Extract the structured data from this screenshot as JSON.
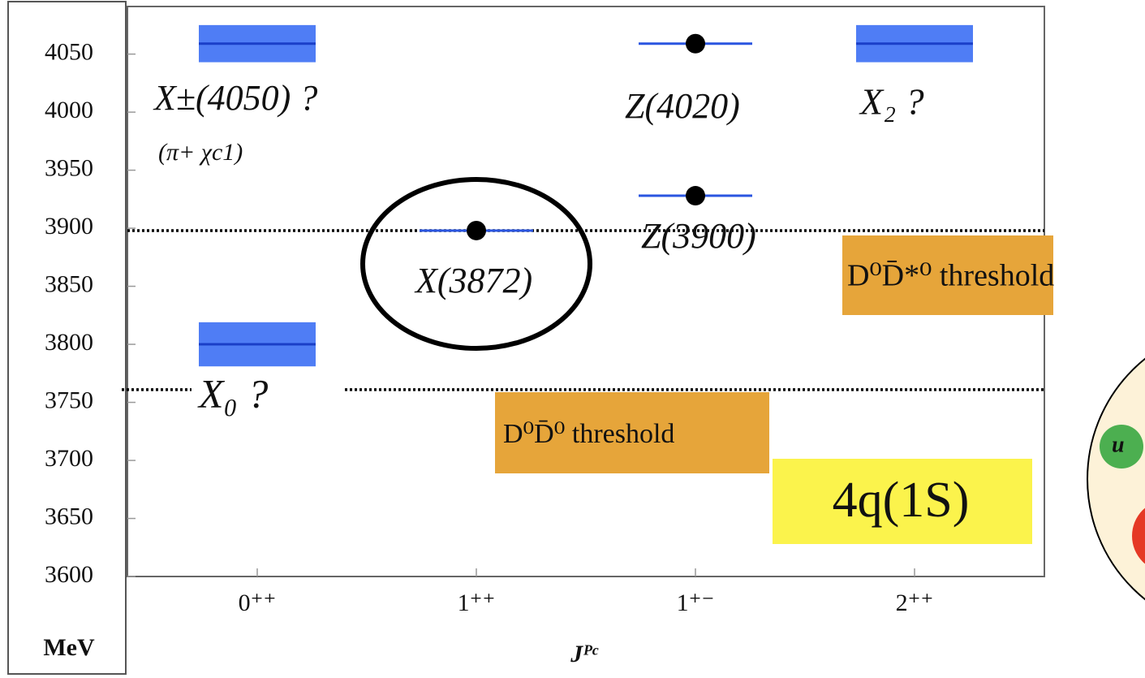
{
  "chart_data": {
    "type": "level",
    "categories": [
      "0⁺⁺",
      "1⁺⁺",
      "1⁺⁻",
      "2⁺⁺"
    ],
    "x_label": "Jᴾᶜ",
    "y_unit": "MeV",
    "ylim": [
      3600,
      4091
    ],
    "yticks": [
      3600,
      3650,
      3700,
      3750,
      3800,
      3850,
      3900,
      3950,
      4000,
      4050
    ],
    "states": [
      {
        "name": "X±(4050) ?",
        "note": "(π+ χc1)",
        "category": 0,
        "mass": 4059,
        "width": 16,
        "color": "#4f7df5"
      },
      {
        "name": "X₀ ?",
        "category": 0,
        "mass": 3800,
        "width": 19,
        "color": "#4f7df5"
      },
      {
        "name": "X(3872)",
        "category": 1,
        "mass": 3898,
        "color": "#000000"
      },
      {
        "name": "Z(4020)",
        "category": 2,
        "mass": 4059,
        "color": "#000000"
      },
      {
        "name": "Z(3900)",
        "category": 2,
        "mass": 3928,
        "color": "#000000"
      },
      {
        "name": "X₂ ?",
        "category": 3,
        "mass": 4059,
        "width": 16,
        "color": "#4f7df5"
      }
    ],
    "thresholds": [
      {
        "label": "D⁰D̄*⁰ threshold",
        "value": 3898
      },
      {
        "label": "D⁰D̄⁰ threshold",
        "value": 3761
      }
    ],
    "box_label": "4q(1S)",
    "inset_label": "u"
  }
}
